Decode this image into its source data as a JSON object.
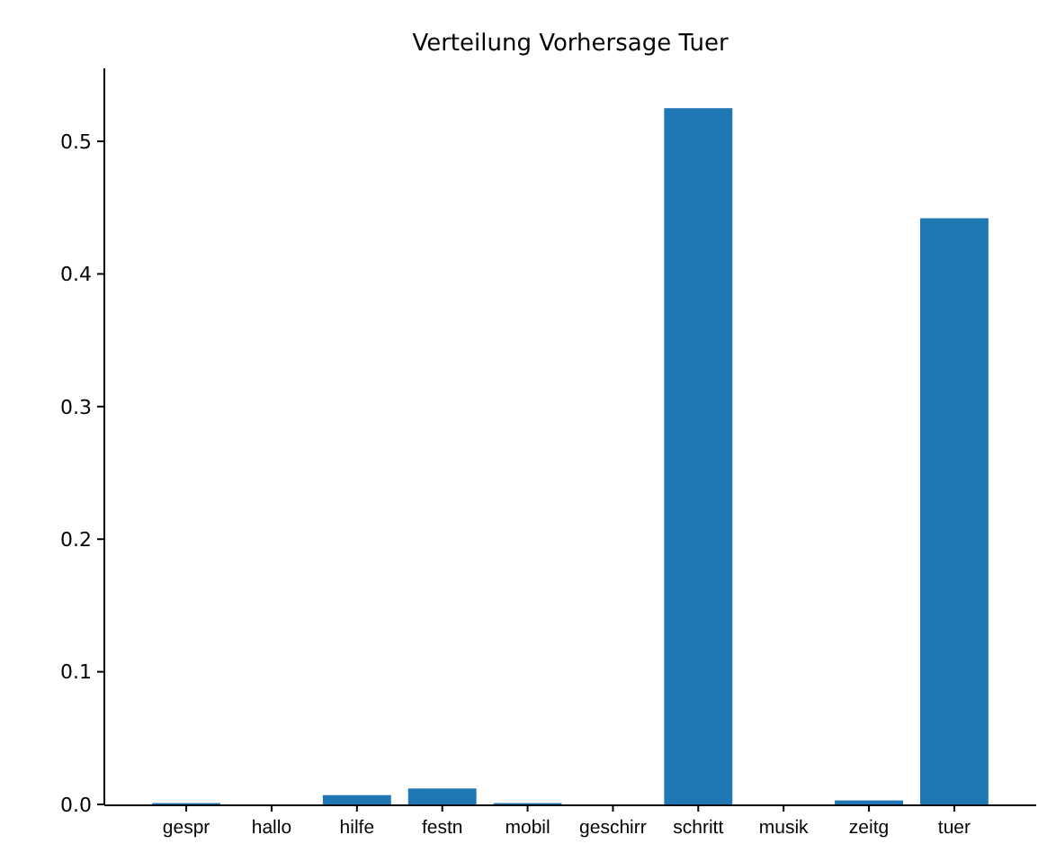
{
  "chart_data": {
    "type": "bar",
    "title": "Verteilung Vorhersage Tuer",
    "categories": [
      "gespr",
      "hallo",
      "hilfe",
      "festn",
      "mobil",
      "geschirr",
      "schritt",
      "musik",
      "zeitg",
      "tuer"
    ],
    "values": [
      0.001,
      0,
      0.007,
      0.012,
      0.001,
      0,
      0.525,
      0,
      0.003,
      0.442
    ],
    "color": "#1f77b4",
    "ylim": [
      0,
      0.555
    ],
    "yticks": [
      {
        "value": 0,
        "label": "0.0"
      },
      {
        "value": 0.1,
        "label": "0.1"
      },
      {
        "value": 0.2,
        "label": "0.2"
      },
      {
        "value": 0.3,
        "label": "0.3"
      },
      {
        "value": 0.4,
        "label": "0.4"
      },
      {
        "value": 0.5,
        "label": "0.5"
      }
    ]
  }
}
